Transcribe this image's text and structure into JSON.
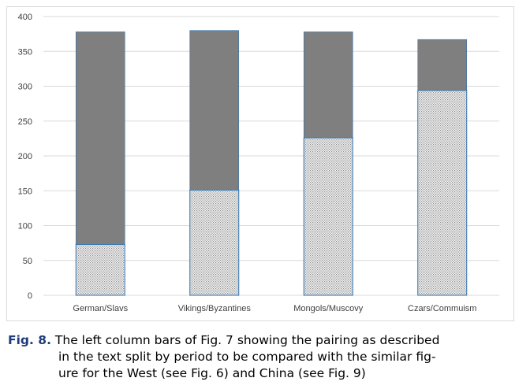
{
  "chart_data": {
    "type": "bar",
    "stacked": true,
    "categories": [
      "German/Slavs",
      "Vikings/Byzantines",
      "Mongols/Muscovy",
      "Czars/Commuism"
    ],
    "series": [
      {
        "values": [
          73,
          151,
          226,
          294
        ],
        "color": "#e6e6e6",
        "pattern": "dotted-hatch"
      },
      {
        "values": [
          305,
          229,
          152,
          73
        ],
        "color": "#7f7f7f"
      }
    ],
    "yticks": [
      0,
      50,
      100,
      150,
      200,
      250,
      300,
      350,
      400
    ],
    "ylim": [
      0,
      400
    ],
    "grid": true,
    "legend": "none",
    "bar_outline_color": "#2e75b6",
    "gridline_color": "#d9d9d9"
  },
  "caption": {
    "label": "Fig. 8.",
    "line1": " The left column bars of Fig. 7 showing the pairing as described",
    "line2": "in the text split by period to be compared with the similar fig-",
    "line3": "ure for the West (see Fig. 6) and China (see Fig. 9)"
  }
}
